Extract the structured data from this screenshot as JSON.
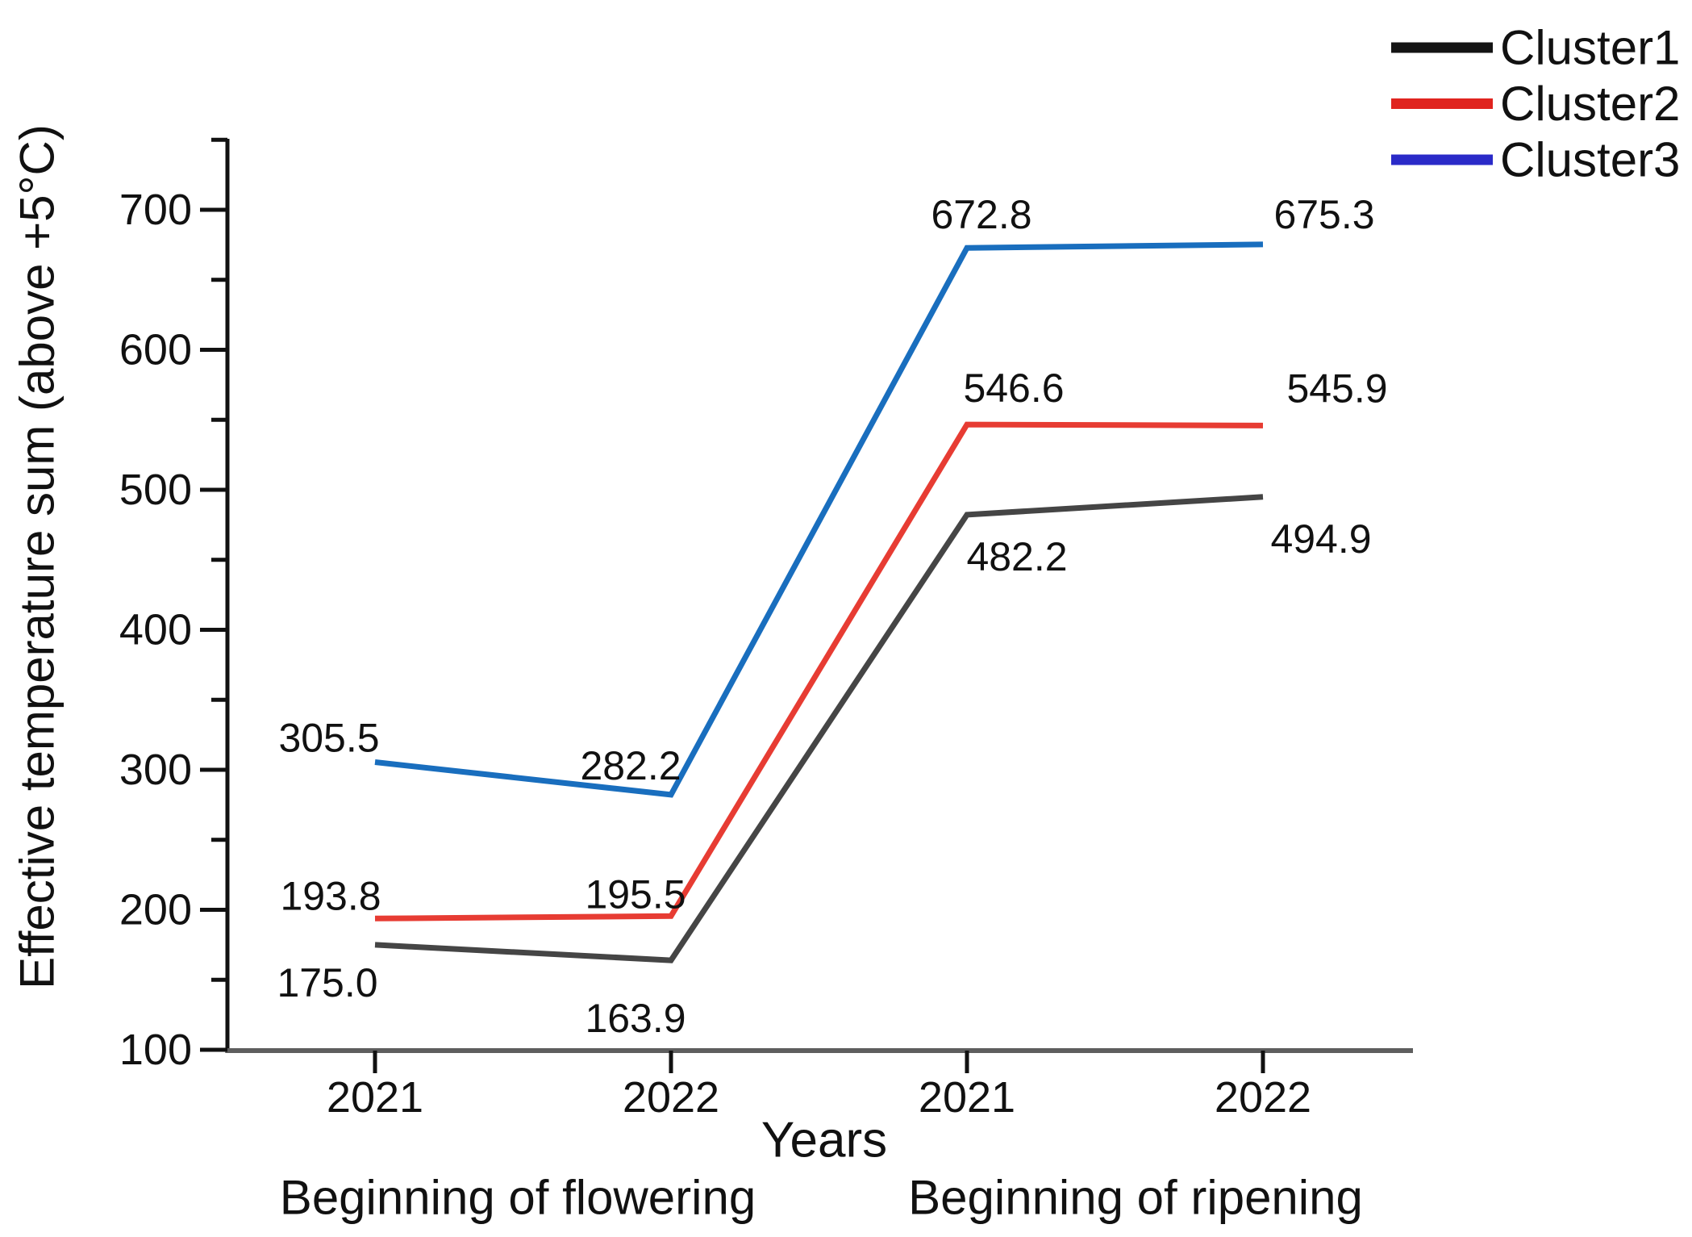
{
  "figure": {
    "description": "Line chart of effective temperature sums for three clusters at two phenological stages over two years"
  },
  "chart_data": {
    "type": "line",
    "title": "",
    "x": {
      "label": "Years",
      "categories": [
        "2021",
        "2022",
        "2021",
        "2022"
      ],
      "group_labels": [
        "Beginning of flowering",
        "Beginning of ripening"
      ]
    },
    "y": {
      "label": "Effective temperature sum (above +5°C)",
      "ticks": [
        100,
        200,
        300,
        400,
        500,
        600,
        700
      ],
      "minor_ticks": [
        150,
        250,
        350,
        450,
        550,
        650,
        750
      ],
      "range": [
        100,
        750
      ],
      "grid": false
    },
    "series": [
      {
        "name": "Cluster1",
        "color": "#454545",
        "legend_color": "#141414",
        "values": [
          175.0,
          163.9,
          482.2,
          494.9
        ]
      },
      {
        "name": "Cluster2",
        "color": "#e73c33",
        "legend_color": "#e0241f",
        "values": [
          193.8,
          195.5,
          546.6,
          545.9
        ]
      },
      {
        "name": "Cluster3",
        "color": "#196ebe",
        "legend_color": "#2a2ac8",
        "values": [
          305.5,
          282.2,
          672.8,
          675.3
        ]
      }
    ],
    "data_labels": {
      "cluster1": [
        "175.0",
        "163.9",
        "482.2",
        "494.9"
      ],
      "cluster2": [
        "193.8",
        "195.5",
        "546.6",
        "545.9"
      ],
      "cluster3": [
        "305.5",
        "282.2",
        "672.8",
        "675.3"
      ]
    },
    "legend": {
      "position": "top-right",
      "entries": [
        "Cluster1",
        "Cluster2",
        "Cluster3"
      ]
    },
    "colors": {
      "axis_y": "#111111",
      "axis_x": "#5e5e5e",
      "text": "#111111"
    }
  }
}
